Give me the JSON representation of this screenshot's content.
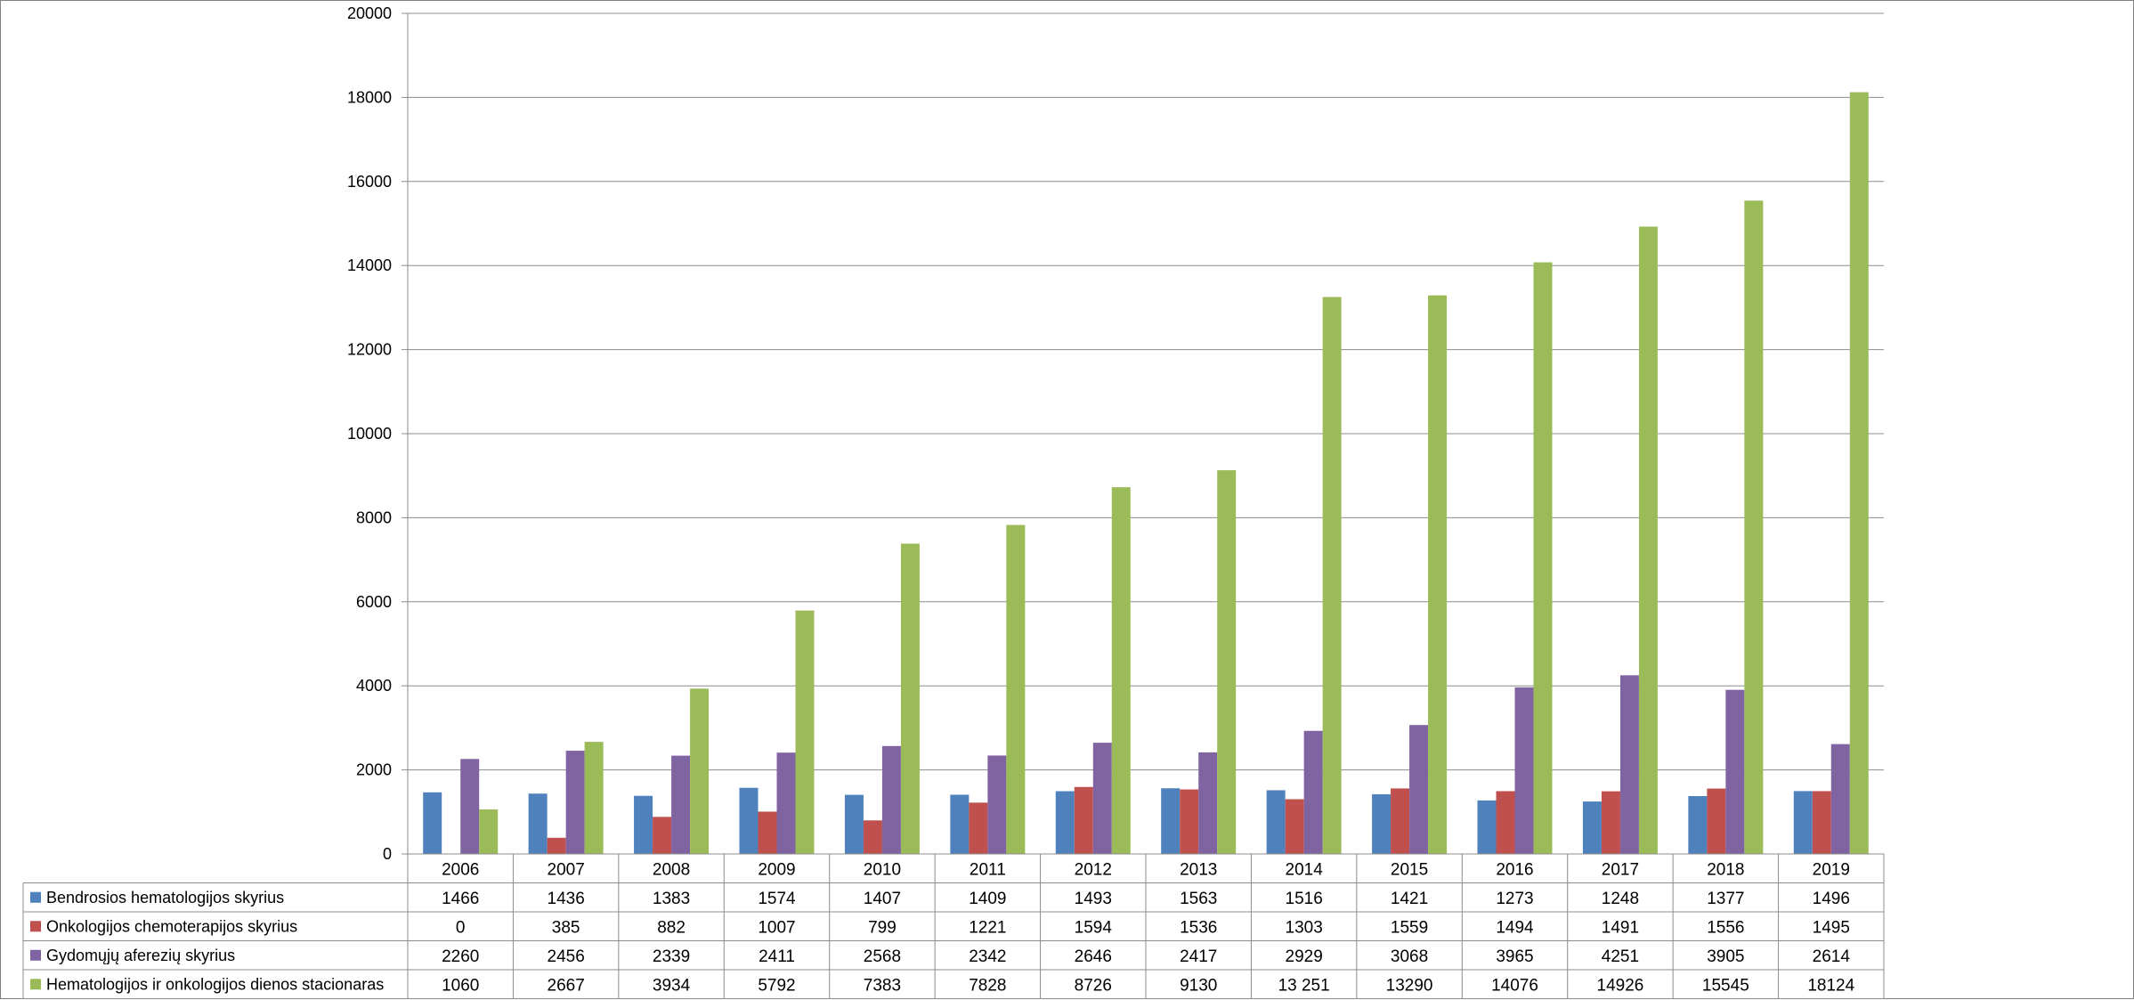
{
  "chart_data": {
    "type": "bar",
    "title": "",
    "xlabel": "",
    "ylabel": "",
    "ylim": [
      0,
      20000
    ],
    "yticks": [
      0,
      2000,
      4000,
      6000,
      8000,
      10000,
      12000,
      14000,
      16000,
      18000,
      20000
    ],
    "grid": true,
    "legend": "data-table-below",
    "categories": [
      "2006",
      "2007",
      "2008",
      "2009",
      "2010",
      "2011",
      "2012",
      "2013",
      "2014",
      "2015",
      "2016",
      "2017",
      "2018",
      "2019"
    ],
    "series": [
      {
        "name": "Bendrosios hematologijos skyrius",
        "color": "#4F81BD",
        "values": [
          1466,
          1436,
          1383,
          1574,
          1407,
          1409,
          1493,
          1563,
          1516,
          1421,
          1273,
          1248,
          1377,
          1496
        ]
      },
      {
        "name": "Onkologijos chemoterapijos skyrius",
        "color": "#C0504D",
        "values": [
          0,
          385,
          882,
          1007,
          799,
          1221,
          1594,
          1536,
          1303,
          1559,
          1494,
          1491,
          1556,
          1495
        ]
      },
      {
        "name": "Gydomųjų aferezių skyrius",
        "color": "#8064A2",
        "values": [
          2260,
          2456,
          2339,
          2411,
          2568,
          2342,
          2646,
          2417,
          2929,
          3068,
          3965,
          4251,
          3905,
          2614
        ]
      },
      {
        "name": "Hematologijos ir onkologijos dienos stacionaras",
        "color": "#9BBB59",
        "values": [
          1060,
          2667,
          3934,
          5792,
          7383,
          7828,
          8726,
          9130,
          13251,
          13290,
          14076,
          14926,
          15545,
          18124
        ]
      }
    ],
    "table_values": [
      [
        "1466",
        "1436",
        "1383",
        "1574",
        "1407",
        "1409",
        "1493",
        "1563",
        "1516",
        "1421",
        "1273",
        "1248",
        "1377",
        "1496"
      ],
      [
        "0",
        "385",
        "882",
        "1007",
        "799",
        "1221",
        "1594",
        "1536",
        "1303",
        "1559",
        "1494",
        "1491",
        "1556",
        "1495"
      ],
      [
        "2260",
        "2456",
        "2339",
        "2411",
        "2568",
        "2342",
        "2646",
        "2417",
        "2929",
        "3068",
        "3965",
        "4251",
        "3905",
        "2614"
      ],
      [
        "1060",
        "2667",
        "3934",
        "5792",
        "7383",
        "7828",
        "8726",
        "9130",
        "13 251",
        "13290",
        "14076",
        "14926",
        "15545",
        "18124"
      ]
    ]
  }
}
